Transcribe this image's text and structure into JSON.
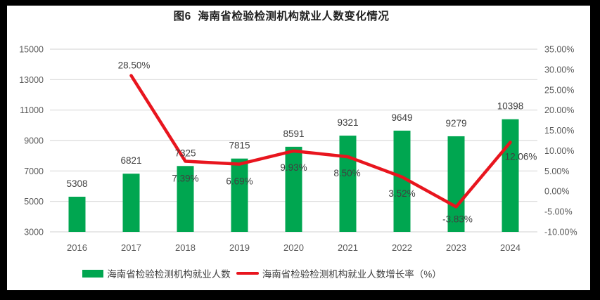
{
  "title": "图6  海南省检验检测机构就业人数变化情况",
  "colors": {
    "bar": "#00A650",
    "line": "#E8151E",
    "grid": "#D9D9D9",
    "axis_text": "#595959",
    "label_text": "#404040",
    "frame": "#000000",
    "background": "#FFFFFF"
  },
  "legend": [
    {
      "label": "海南省检验检测机构就业人数",
      "marker": "bar-swatch"
    },
    {
      "label": "海南省检验检测机构就业人数增长率（%）",
      "marker": "line-swatch"
    }
  ],
  "chart_data": {
    "type": "bar+line",
    "title": "图6  海南省检验检测机构就业人数变化情况",
    "categories": [
      "2016",
      "2017",
      "2018",
      "2019",
      "2020",
      "2021",
      "2022",
      "2023",
      "2024"
    ],
    "series": [
      {
        "name": "海南省检验检测机构就业人数",
        "type": "bar",
        "axis": "left",
        "color": "#00A650",
        "values": [
          5308,
          6821,
          7325,
          7815,
          8591,
          9321,
          9649,
          9279,
          10398
        ],
        "labels": [
          "5308",
          "6821",
          "7325",
          "7815",
          "8591",
          "9321",
          "9649",
          "9279",
          "10398"
        ]
      },
      {
        "name": "海南省检验检测机构就业人数增长率（%）",
        "type": "line",
        "axis": "right",
        "color": "#E8151E",
        "values": [
          null,
          28.5,
          7.39,
          6.69,
          9.93,
          8.5,
          3.52,
          -3.83,
          12.06
        ],
        "labels": [
          null,
          "28.50%",
          "7.39%",
          "6.69%",
          "9.93%",
          "8.50%",
          "3.52%",
          "-3.83%",
          "12.06%"
        ]
      }
    ],
    "left_axis": {
      "min": 3000,
      "max": 15000,
      "step": 2000,
      "ticks": [
        "15000",
        "13000",
        "11000",
        "9000",
        "7000",
        "5000",
        "3000"
      ]
    },
    "right_axis": {
      "min": -10,
      "max": 35,
      "step": 5,
      "ticks": [
        "35.00%",
        "30.00%",
        "25.00%",
        "20.00%",
        "15.00%",
        "10.00%",
        "5.00%",
        "0.00%",
        "-10.00%"
      ],
      "ticks_full": [
        "35.00%",
        "30.00%",
        "25.00%",
        "20.00%",
        "15.00%",
        "10.00%",
        "5.00%",
        "0.00%",
        "-5.00%",
        "-10.00%"
      ]
    },
    "grid": "horizontal",
    "legend_position": "bottom"
  }
}
